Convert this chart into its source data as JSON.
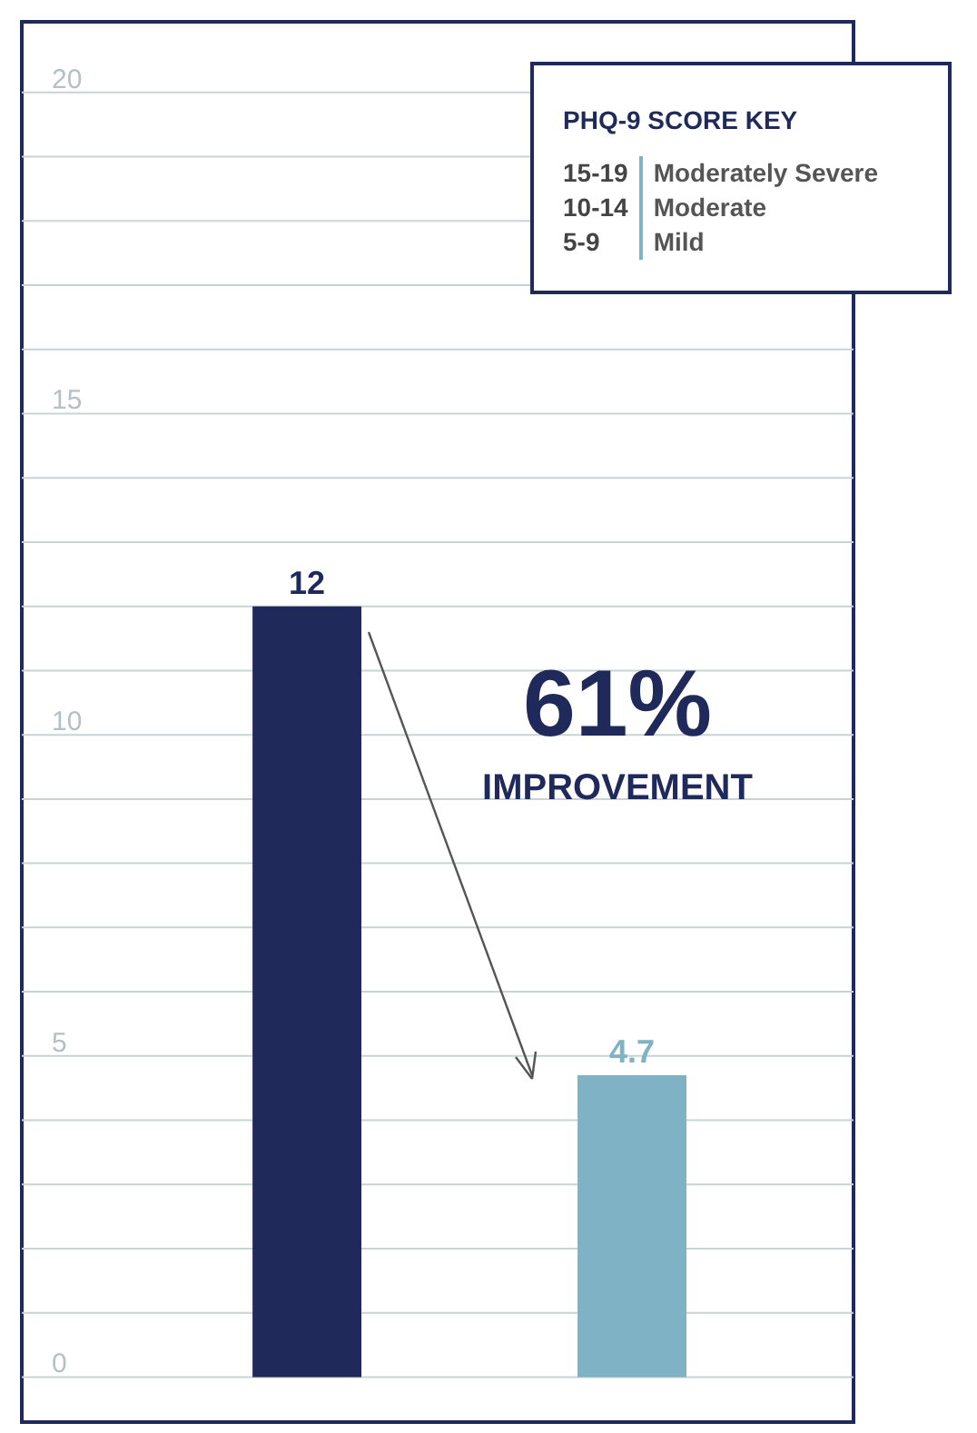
{
  "chart_data": {
    "type": "bar",
    "categories": [
      null,
      null
    ],
    "values": [
      12,
      4.7
    ],
    "colors": [
      "#1f2a5a",
      "#7fb2c4"
    ],
    "data_labels": true,
    "ylim": [
      -0.7,
      21.1
    ],
    "yticks": [
      0,
      {
        "value": 1,
        "label": null
      },
      {
        "value": 2,
        "label": null
      },
      {
        "value": 3,
        "label": null
      },
      {
        "value": 4,
        "label": null
      },
      5,
      {
        "value": 6,
        "label": null
      },
      {
        "value": 7,
        "label": null
      },
      {
        "value": 8,
        "label": null
      },
      {
        "value": 9,
        "label": null
      },
      10,
      {
        "value": 11,
        "label": null
      },
      {
        "value": 12,
        "label": null
      },
      {
        "value": 13,
        "label": null
      },
      {
        "value": 14,
        "label": null
      },
      15,
      {
        "value": 16,
        "label": null
      },
      {
        "value": 17,
        "label": null
      },
      {
        "value": 18,
        "label": null
      },
      {
        "value": 19,
        "label": null
      },
      20
    ],
    "grid": true,
    "annotations": [
      "61%",
      "IMPROVEMENT",
      "PHQ-9 SCORE KEY",
      "15-19",
      "Moderately Severe",
      "10-14",
      "Moderate",
      "5-9",
      "Mild"
    ]
  }
}
